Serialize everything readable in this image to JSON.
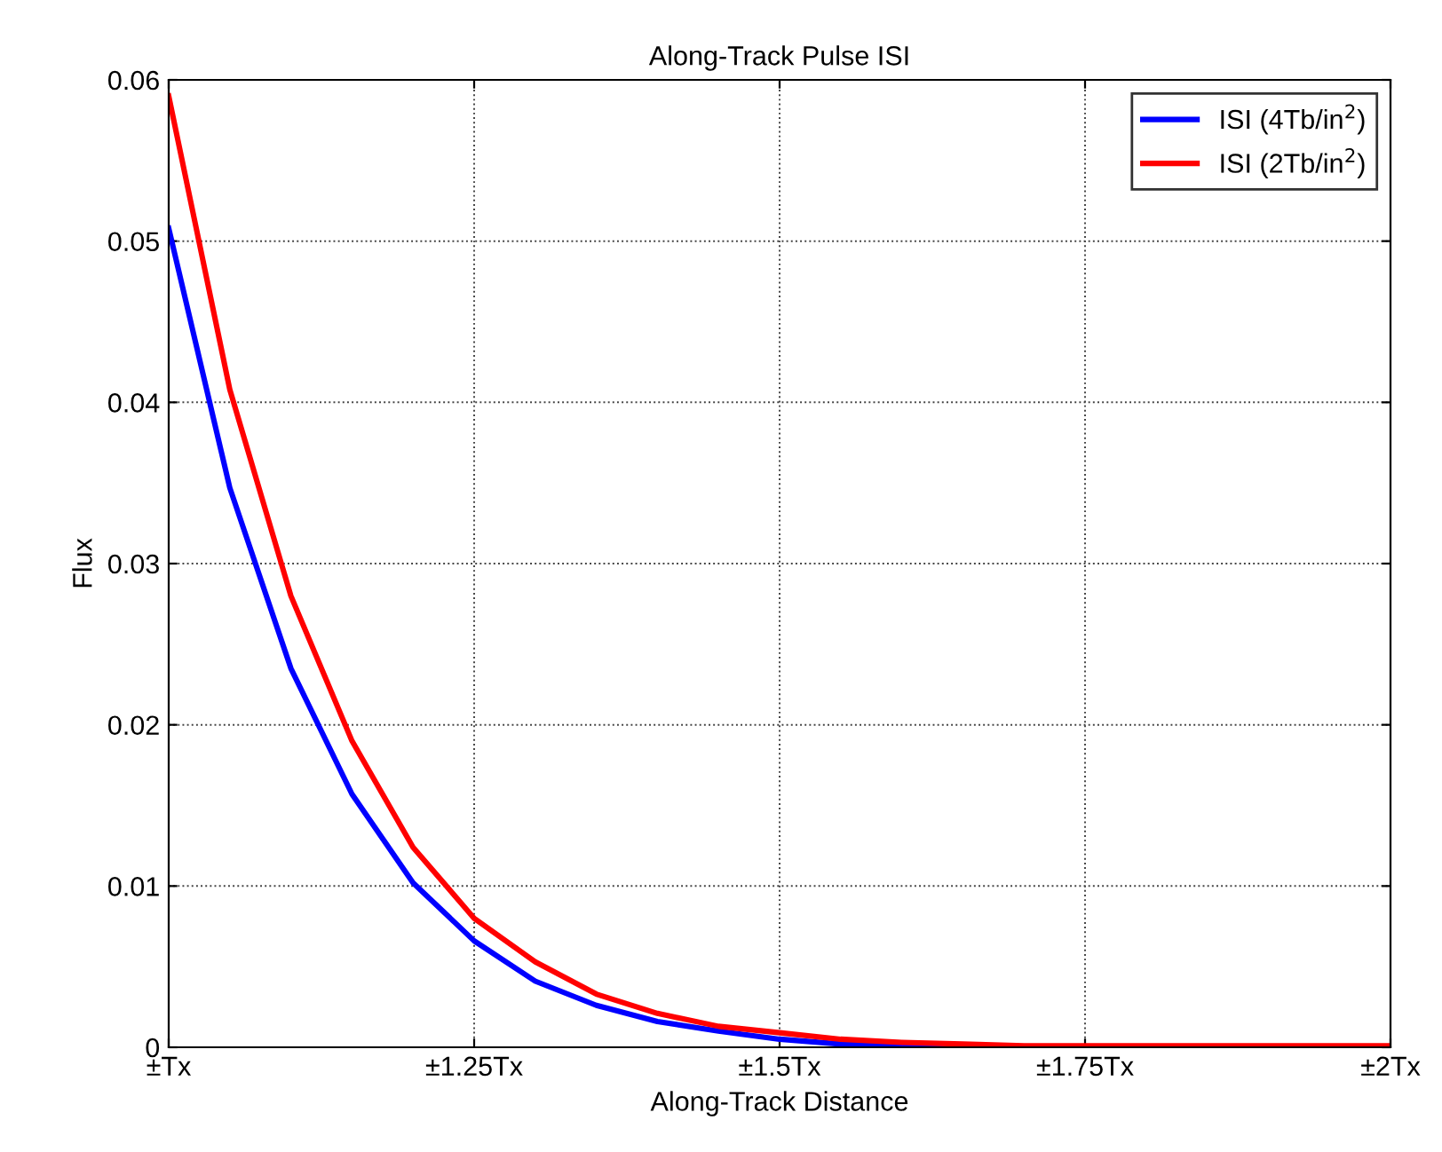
{
  "chart_data": {
    "type": "line",
    "title": "Along-Track Pulse ISI",
    "xlabel": "Along-Track Distance",
    "ylabel": "Flux",
    "x": [
      1,
      1.05,
      1.1,
      1.15,
      1.2,
      1.25,
      1.3,
      1.35,
      1.4,
      1.45,
      1.5,
      1.55,
      1.6,
      1.65,
      1.7,
      1.75,
      1.8,
      1.85,
      1.9,
      1.95,
      2
    ],
    "series": [
      {
        "name": "ISI (4Tb/in$^{2}$)",
        "color": "#0000ff",
        "values": [
          0.0508,
          0.0347,
          0.0235,
          0.0157,
          0.0102,
          0.0066,
          0.0041,
          0.0026,
          0.0016,
          0.001,
          0.0005,
          0.0002,
          0.0001,
          0,
          null,
          null,
          null,
          null,
          null,
          null,
          null
        ]
      },
      {
        "name": "ISI (2Tb/in$^{2}$)",
        "color": "#ff0000",
        "values": [
          0.059,
          0.0408,
          0.028,
          0.019,
          0.0124,
          0.008,
          0.0053,
          0.0033,
          0.0021,
          0.0013,
          0.0009,
          0.0005,
          0.0003,
          0.0002,
          0.0001,
          0.0001,
          0.0001,
          0.0001,
          0.0001,
          0.0001,
          0.0001
        ]
      }
    ],
    "xlim": [
      1,
      2
    ],
    "xticks": [
      {
        "value": 1,
        "label": "±Tx"
      },
      {
        "value": 1.25,
        "label": "±1.25Tx"
      },
      {
        "value": 1.5,
        "label": "±1.5Tx"
      },
      {
        "value": 1.75,
        "label": "±1.75Tx"
      },
      {
        "value": 2,
        "label": "±2Tx"
      }
    ],
    "ylim": [
      0,
      0.06
    ],
    "yticks": [
      0,
      0.01,
      0.02,
      0.03,
      0.04,
      0.05,
      0.06
    ],
    "grid": true,
    "legend": "top right",
    "marker": "none",
    "line_style": "solid"
  }
}
